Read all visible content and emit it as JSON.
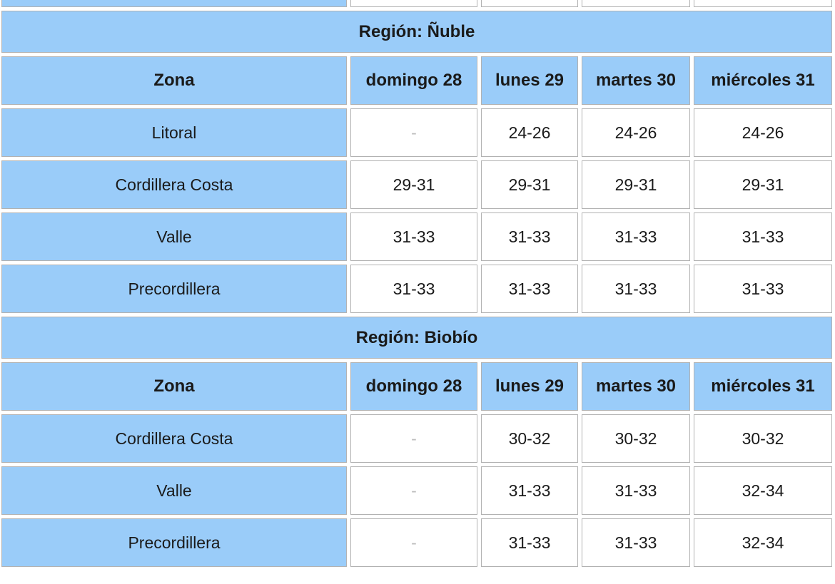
{
  "colors": {
    "cell_blue": "#9accf9",
    "cell_border": "#b2b2b2",
    "text": "#1a1a1a",
    "dash_gray": "#bdbdbd",
    "page_background": "#ffffff"
  },
  "cropped_top_row": {
    "note_cells": [
      "",
      "",
      "",
      "",
      ""
    ]
  },
  "sections": [
    {
      "region_label": "Región: Ñuble",
      "columns": [
        "Zona",
        "domingo 28",
        "lunes 29",
        "martes 30",
        "miércoles 31"
      ],
      "rows": [
        {
          "zone": "Litoral",
          "values": [
            "-",
            "24-26",
            "24-26",
            "24-26"
          ]
        },
        {
          "zone": "Cordillera Costa",
          "values": [
            "29-31",
            "29-31",
            "29-31",
            "29-31"
          ]
        },
        {
          "zone": "Valle",
          "values": [
            "31-33",
            "31-33",
            "31-33",
            "31-33"
          ]
        },
        {
          "zone": "Precordillera",
          "values": [
            "31-33",
            "31-33",
            "31-33",
            "31-33"
          ]
        }
      ]
    },
    {
      "region_label": "Región: Biobío",
      "columns": [
        "Zona",
        "domingo 28",
        "lunes 29",
        "martes 30",
        "miércoles 31"
      ],
      "rows": [
        {
          "zone": "Cordillera Costa",
          "values": [
            "-",
            "30-32",
            "30-32",
            "30-32"
          ]
        },
        {
          "zone": "Valle",
          "values": [
            "-",
            "31-33",
            "31-33",
            "32-34"
          ]
        },
        {
          "zone": "Precordillera",
          "values": [
            "-",
            "31-33",
            "31-33",
            "32-34"
          ]
        }
      ]
    }
  ]
}
